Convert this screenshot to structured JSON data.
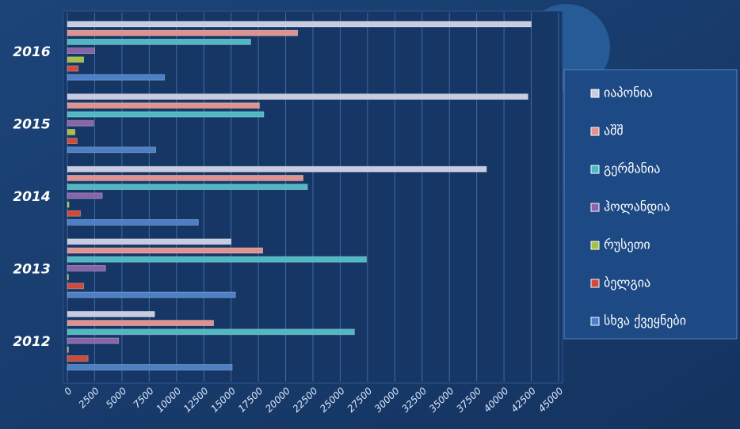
{
  "chart_data": {
    "type": "bar",
    "orientation": "horizontal",
    "categories": [
      "2012",
      "2013",
      "2014",
      "2015",
      "2016"
    ],
    "series": [
      {
        "name": "იაპონია",
        "color": "#c9cce0",
        "values": [
          8000,
          15000,
          38400,
          42200,
          42500
        ]
      },
      {
        "name": "აშშ",
        "color": "#e0938e",
        "values": [
          13400,
          17900,
          21600,
          17600,
          21100
        ]
      },
      {
        "name": "გერმანია",
        "color": "#4fb8c2",
        "values": [
          26300,
          27400,
          22000,
          18000,
          16800
        ]
      },
      {
        "name": "ჰოლანდია",
        "color": "#8a64a8",
        "values": [
          4700,
          3500,
          3200,
          2400,
          2500
        ]
      },
      {
        "name": "რუსეთი",
        "color": "#a6c040",
        "values": [
          100,
          100,
          150,
          700,
          1500
        ]
      },
      {
        "name": "ბელგია",
        "color": "#d04a3a",
        "values": [
          1900,
          1500,
          1200,
          900,
          1000
        ]
      },
      {
        "name": "სხვა ქვეყნები",
        "color": "#4c7fc6",
        "values": [
          15100,
          15400,
          12000,
          8100,
          8900
        ]
      }
    ],
    "xlim": [
      0,
      45000
    ],
    "xticks": [
      0,
      2500,
      5000,
      7500,
      10000,
      12500,
      15000,
      17500,
      20000,
      22500,
      25000,
      27500,
      30000,
      32500,
      35000,
      37500,
      40000,
      42500,
      45000
    ],
    "grid": true,
    "legend": "right"
  }
}
